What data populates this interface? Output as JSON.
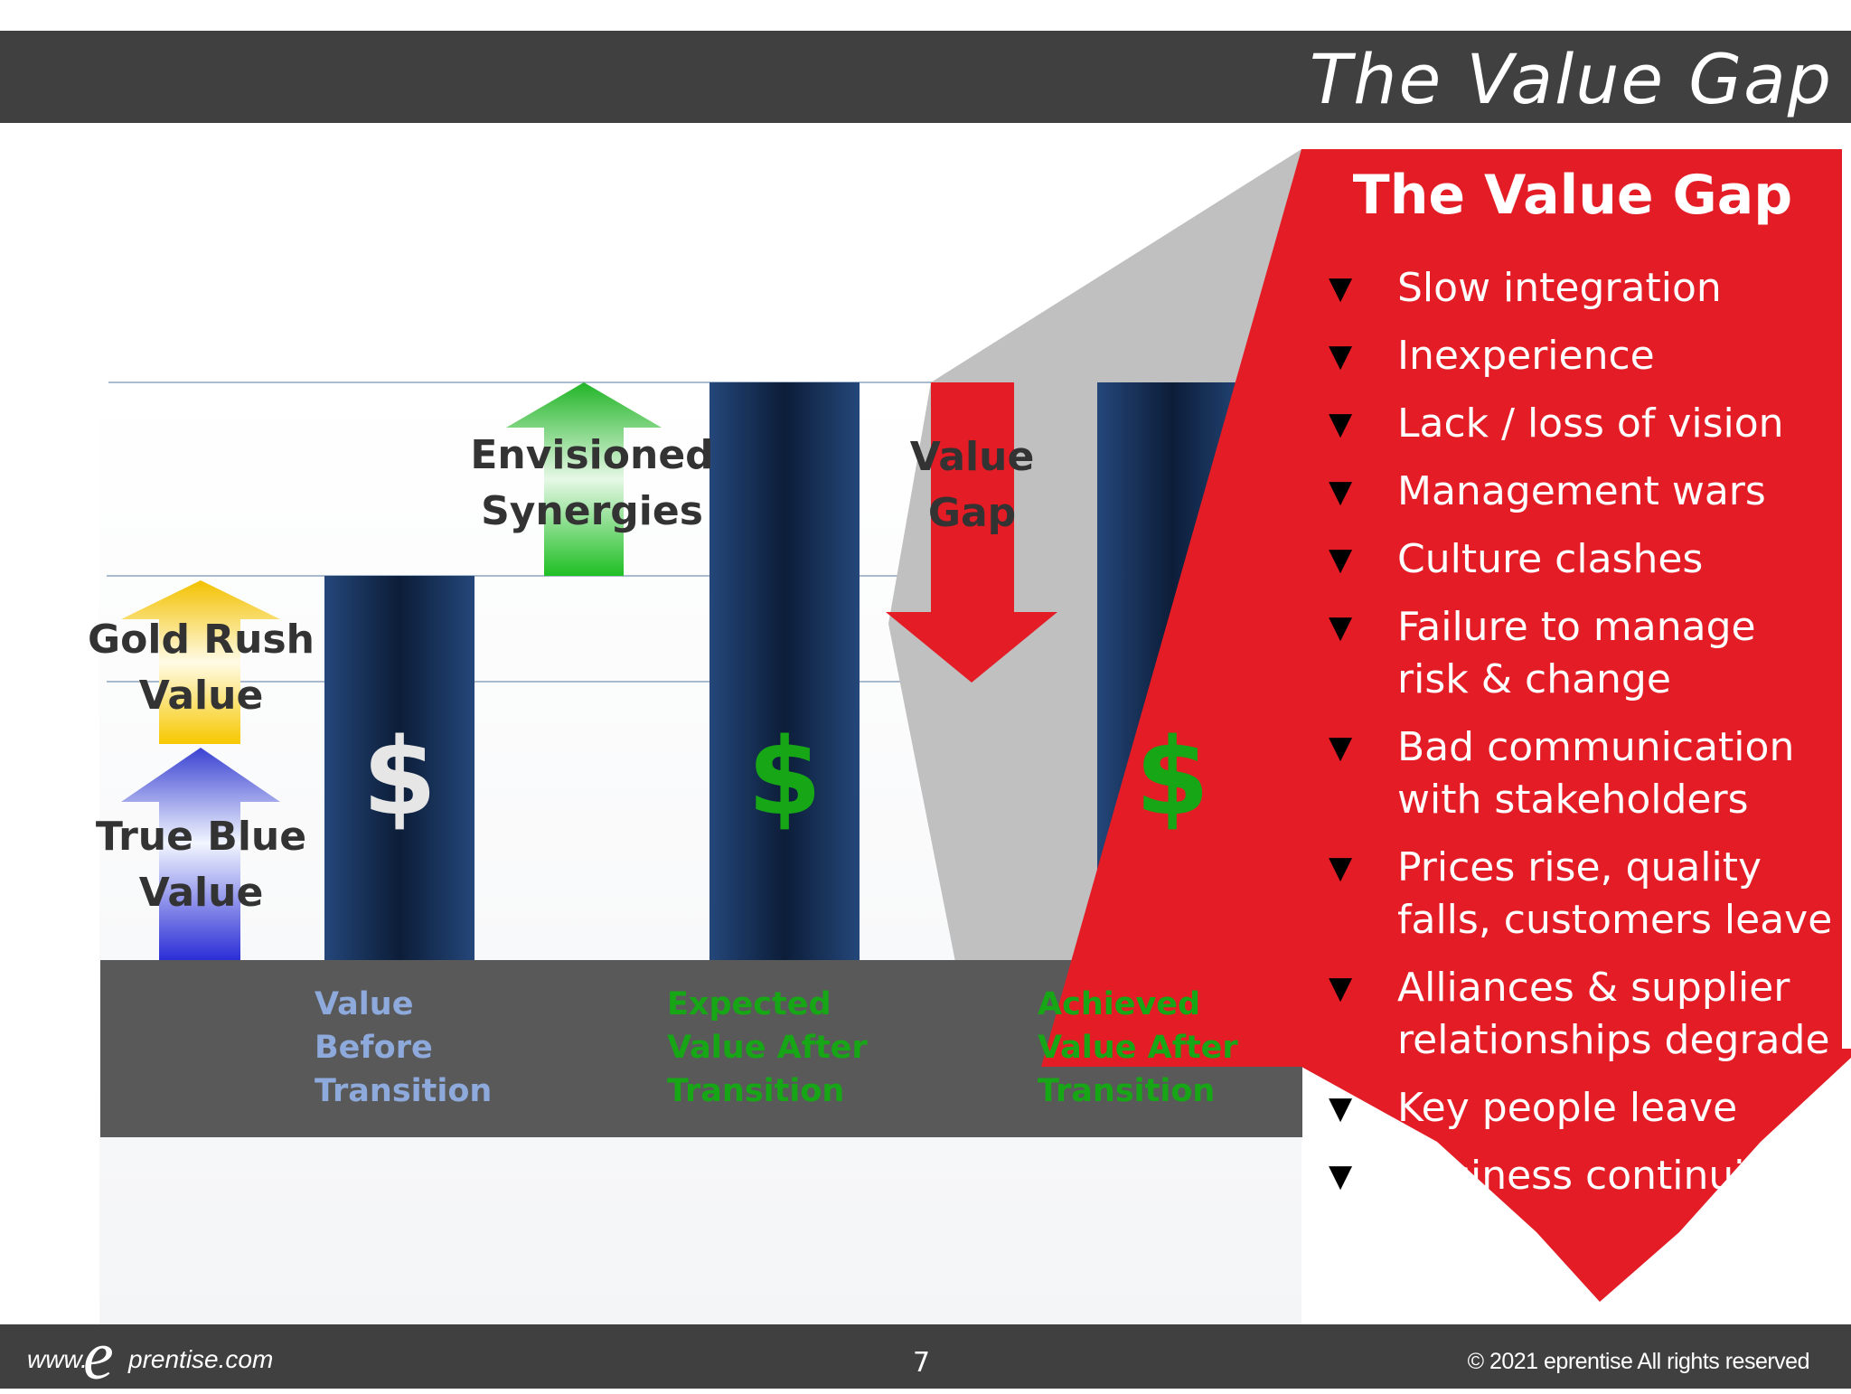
{
  "slide": {
    "title": "The Value Gap",
    "footer": {
      "website_prefix": "www.",
      "logo_letter": "e",
      "website_domain": "prentise.com",
      "page_number": "7",
      "copyright": "© 2021 eprentise  All rights reserved"
    }
  },
  "diagram": {
    "arrows": {
      "true_blue": "True Blue Value",
      "gold_rush": "Gold Rush Value",
      "envisioned": "Envisioned Synergies",
      "value_gap": "Value Gap"
    },
    "bars": [
      {
        "symbol": "$",
        "label": "Value Before Transition",
        "symbol_color": "#e6e6e6",
        "label_color": "#8ea9db"
      },
      {
        "symbol": "$",
        "label": "Expected Value After Transition",
        "symbol_color": "#16a616",
        "label_color": "#16a616"
      },
      {
        "symbol": "$",
        "label": "Achieved Value After Transition",
        "symbol_color": "#16a616",
        "label_color": "#16a616"
      }
    ]
  },
  "value_gap_panel": {
    "title": "The Value Gap",
    "items": [
      "Slow integration",
      "Inexperience",
      "Lack / loss of vision",
      "Management wars",
      "Culture clashes",
      "Failure to manage risk & change",
      "Bad communication with stakeholders",
      "Prices rise, quality falls, customers leave",
      "Alliances & supplier relationships degrade",
      "Key people leave",
      "Business continuity lost"
    ],
    "bullet_glyph": "▼"
  },
  "colors": {
    "header_bg": "#404040",
    "panel_red": "#e31c25",
    "bar_blue": "#1f3d6b",
    "axis_band": "#595959"
  }
}
